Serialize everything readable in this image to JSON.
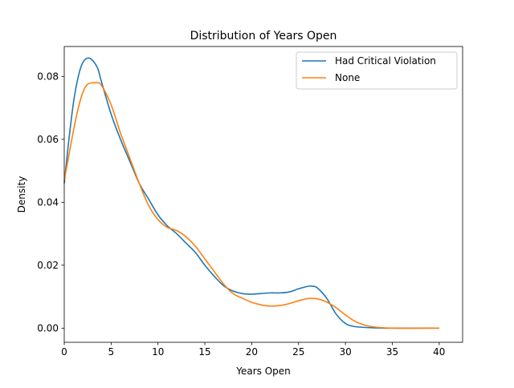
{
  "chart_data": {
    "type": "line",
    "title": "Distribution of Years Open",
    "xlabel": "Years Open",
    "ylabel": "Density",
    "xlim": [
      0,
      42.5
    ],
    "ylim": [
      -0.0045,
      0.0895
    ],
    "xticks": [
      0,
      5,
      10,
      15,
      20,
      25,
      30,
      35,
      40
    ],
    "xtick_labels": [
      "0",
      "5",
      "10",
      "15",
      "20",
      "25",
      "30",
      "35",
      "40"
    ],
    "yticks": [
      0.0,
      0.02,
      0.04,
      0.06,
      0.08
    ],
    "ytick_labels": [
      "0.00",
      "0.02",
      "0.04",
      "0.06",
      "0.08"
    ],
    "grid": false,
    "legend_position": "top-right",
    "series": [
      {
        "name": "Had Critical Violation",
        "color": "#1f77b4",
        "points": [
          [
            0,
            0.046
          ],
          [
            0.5,
            0.06
          ],
          [
            1,
            0.072
          ],
          [
            1.5,
            0.08
          ],
          [
            2,
            0.0845
          ],
          [
            2.7,
            0.0858
          ],
          [
            3.5,
            0.083
          ],
          [
            4,
            0.078
          ],
          [
            5,
            0.068
          ],
          [
            6,
            0.06
          ],
          [
            7,
            0.053
          ],
          [
            8,
            0.046
          ],
          [
            9,
            0.041
          ],
          [
            10,
            0.036
          ],
          [
            11,
            0.0325
          ],
          [
            12,
            0.03
          ],
          [
            13,
            0.027
          ],
          [
            14,
            0.024
          ],
          [
            15,
            0.02
          ],
          [
            16,
            0.0165
          ],
          [
            17,
            0.0135
          ],
          [
            18,
            0.0118
          ],
          [
            19,
            0.011
          ],
          [
            20,
            0.0108
          ],
          [
            21,
            0.011
          ],
          [
            22,
            0.0112
          ],
          [
            23,
            0.0112
          ],
          [
            24,
            0.0115
          ],
          [
            25,
            0.0125
          ],
          [
            26,
            0.0133
          ],
          [
            26.5,
            0.0133
          ],
          [
            27,
            0.0128
          ],
          [
            28,
            0.0095
          ],
          [
            29,
            0.0045
          ],
          [
            30,
            0.0015
          ],
          [
            31,
            0.0005
          ],
          [
            33,
            0.0001
          ],
          [
            35,
            0.0
          ],
          [
            40,
            0.0
          ]
        ]
      },
      {
        "name": "None",
        "color": "#ff7f0e",
        "points": [
          [
            0,
            0.047
          ],
          [
            0.5,
            0.055
          ],
          [
            1,
            0.063
          ],
          [
            1.5,
            0.07
          ],
          [
            2,
            0.075
          ],
          [
            2.5,
            0.0775
          ],
          [
            3.5,
            0.078
          ],
          [
            4,
            0.077
          ],
          [
            5,
            0.071
          ],
          [
            6,
            0.062
          ],
          [
            7,
            0.054
          ],
          [
            8,
            0.046
          ],
          [
            9,
            0.039
          ],
          [
            10,
            0.0345
          ],
          [
            11,
            0.032
          ],
          [
            12,
            0.031
          ],
          [
            13,
            0.029
          ],
          [
            14,
            0.026
          ],
          [
            15,
            0.022
          ],
          [
            16,
            0.018
          ],
          [
            17,
            0.014
          ],
          [
            18,
            0.011
          ],
          [
            19,
            0.0095
          ],
          [
            20,
            0.0082
          ],
          [
            21,
            0.0074
          ],
          [
            22,
            0.007
          ],
          [
            23,
            0.0072
          ],
          [
            24,
            0.0078
          ],
          [
            25,
            0.0087
          ],
          [
            26,
            0.0094
          ],
          [
            27,
            0.0093
          ],
          [
            28,
            0.0083
          ],
          [
            29,
            0.0065
          ],
          [
            30,
            0.0042
          ],
          [
            31,
            0.0022
          ],
          [
            32,
            0.001
          ],
          [
            33,
            0.0004
          ],
          [
            35,
            0.0
          ],
          [
            40,
            0.0
          ]
        ]
      }
    ]
  }
}
